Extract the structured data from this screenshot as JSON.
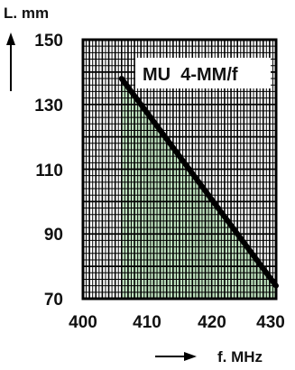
{
  "chart_data": {
    "type": "line",
    "title": "MU  4-MM/f",
    "xlabel": "f. MHz",
    "ylabel": "L. mm",
    "xlim": [
      400,
      430
    ],
    "ylim": [
      70,
      150
    ],
    "x_ticks": [
      "400",
      "410",
      "420",
      "430"
    ],
    "y_ticks": [
      "70",
      "90",
      "110",
      "130",
      "150"
    ],
    "grid": true,
    "series": [
      {
        "x": [
          406,
          430
        ],
        "y": [
          138,
          74
        ]
      }
    ],
    "colors": {
      "fill": "#bfe3bf",
      "line": "#000000",
      "grid": "#000000"
    }
  }
}
